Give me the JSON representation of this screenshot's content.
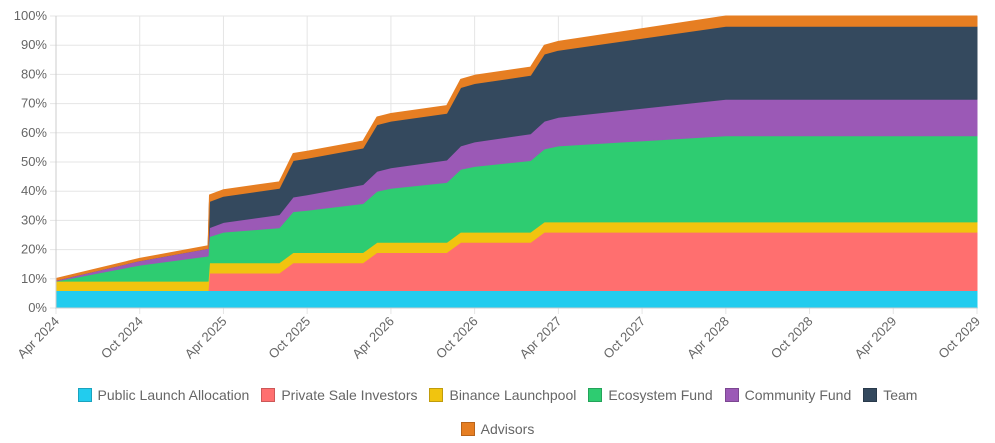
{
  "chart_data": {
    "type": "area",
    "stacked": true,
    "y_ticks": [
      "0%",
      "10%",
      "20%",
      "30%",
      "40%",
      "50%",
      "60%",
      "70%",
      "80%",
      "90%",
      "100%"
    ],
    "ylim": [
      0,
      100
    ],
    "x_ticks": [
      "Apr 2024",
      "Oct 2024",
      "Apr 2025",
      "Oct 2025",
      "Apr 2026",
      "Oct 2026",
      "Apr 2027",
      "Oct 2027",
      "Apr 2028",
      "Oct 2028",
      "Apr 2029",
      "Oct 2029"
    ],
    "x_months": [
      0,
      66
    ],
    "x": [
      0,
      6,
      10.9,
      11,
      12,
      16,
      17,
      18,
      22,
      23,
      24,
      28,
      29,
      30,
      34,
      35,
      36,
      48,
      66
    ],
    "series": [
      {
        "name": "Public Launch Allocation",
        "color": "#22CCEE",
        "values": [
          6,
          6,
          6,
          6,
          6,
          6,
          6,
          6,
          6,
          6,
          6,
          6,
          6,
          6,
          6,
          6,
          6,
          6,
          6
        ]
      },
      {
        "name": "Private Sale Investors",
        "color": "#FF6F6F",
        "values": [
          0,
          0,
          0,
          6,
          6,
          6,
          9.5,
          9.5,
          9.5,
          13,
          13,
          13,
          16.5,
          16.5,
          16.5,
          20,
          20,
          20,
          20
        ]
      },
      {
        "name": "Binance Launchpool",
        "color": "#F1C40F",
        "values": [
          3.2,
          3.2,
          3.2,
          3.5,
          3.5,
          3.5,
          3.5,
          3.5,
          3.5,
          3.5,
          3.5,
          3.5,
          3.5,
          3.5,
          3.5,
          3.5,
          3.5,
          3.5,
          3.5
        ]
      },
      {
        "name": "Ecosystem Fund",
        "color": "#2ECC71",
        "values": [
          0,
          5.5,
          8.6,
          9,
          10.5,
          12,
          14,
          14.5,
          16.8,
          17.5,
          18.5,
          20.5,
          21.5,
          22.5,
          24.5,
          25,
          26,
          29.5,
          29.5
        ]
      },
      {
        "name": "Community Fund",
        "color": "#9B59B6",
        "values": [
          0.3,
          1.5,
          2.6,
          3,
          3.3,
          4.5,
          5,
          5.3,
          6.5,
          6.8,
          7,
          7.7,
          8,
          8.4,
          9.2,
          9.5,
          9.8,
          12.5,
          12.5
        ]
      },
      {
        "name": "Team",
        "color": "#34495E",
        "values": [
          0,
          0,
          0,
          9,
          9,
          9,
          12.5,
          12.5,
          12.5,
          16,
          16,
          16,
          20,
          20,
          20,
          23,
          23,
          25,
          25
        ]
      },
      {
        "name": "Advisors",
        "color": "#E67E22",
        "values": [
          0.6,
          0.8,
          0.9,
          2.2,
          2.2,
          2.2,
          2.4,
          2.4,
          2.4,
          2.6,
          2.6,
          2.6,
          2.8,
          2.8,
          2.8,
          3,
          3,
          3.5,
          3.5
        ]
      }
    ]
  }
}
